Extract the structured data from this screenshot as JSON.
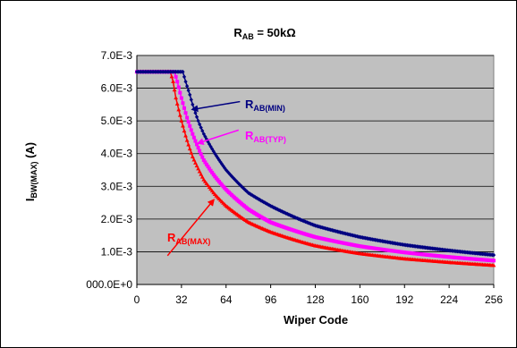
{
  "chart_data": {
    "type": "line",
    "title": {
      "main": "R",
      "sub": "AB",
      "rest": " = 50kΩ"
    },
    "xlabel": "Wiper Code",
    "ylabel": {
      "main": "I",
      "sub": "BW(MAX)",
      "rest": " (A)"
    },
    "xlim": [
      0,
      256
    ],
    "ylim": [
      0,
      0.007
    ],
    "xticks": [
      0,
      32,
      64,
      96,
      128,
      160,
      192,
      224,
      256
    ],
    "xtick_labels": [
      "0",
      "32",
      "64",
      "96",
      "128",
      "160",
      "192",
      "224",
      "256"
    ],
    "yticks": [
      0,
      0.001,
      0.002,
      0.003,
      0.004,
      0.005,
      0.006,
      0.007
    ],
    "ytick_labels": [
      "000.0E+0",
      "1.0E-3",
      "2.0E-3",
      "3.0E-3",
      "4.0E-3",
      "5.0E-3",
      "6.0E-3",
      "7.0E-3"
    ],
    "grid": true,
    "plot_background": "#c0c0c0",
    "series": [
      {
        "id": "max",
        "color": "#ff0000",
        "marker": "triangle",
        "x": [
          0,
          24,
          26,
          28,
          32,
          36,
          40,
          48,
          56,
          64,
          80,
          96,
          128,
          160,
          192,
          224,
          256
        ],
        "y": [
          0.0065,
          0.0065,
          0.0062,
          0.0057,
          0.005,
          0.0044,
          0.0039,
          0.0032,
          0.00275,
          0.0024,
          0.0019,
          0.0016,
          0.00118,
          0.00094,
          0.00078,
          0.00067,
          0.00058
        ]
      },
      {
        "id": "typ",
        "color": "#ff00ff",
        "marker": "square",
        "x": [
          0,
          27,
          29,
          32,
          36,
          40,
          48,
          56,
          64,
          80,
          96,
          128,
          160,
          192,
          224,
          256
        ],
        "y": [
          0.0065,
          0.0065,
          0.0062,
          0.0057,
          0.0051,
          0.0046,
          0.0038,
          0.0033,
          0.0029,
          0.0023,
          0.0019,
          0.00145,
          0.00117,
          0.00098,
          0.00084,
          0.00073
        ]
      },
      {
        "id": "min",
        "color": "#000080",
        "marker": "diamond",
        "x": [
          0,
          33,
          35,
          38,
          40,
          44,
          48,
          56,
          64,
          80,
          96,
          128,
          160,
          192,
          224,
          256
        ],
        "y": [
          0.0065,
          0.0065,
          0.0062,
          0.0058,
          0.0055,
          0.005,
          0.0046,
          0.004,
          0.0035,
          0.0028,
          0.0024,
          0.0018,
          0.00145,
          0.00121,
          0.00104,
          0.0009
        ]
      }
    ],
    "annotations": [
      {
        "id": "min",
        "main": "R",
        "sub": "AB(MIN)",
        "color": "#000080",
        "arrow_from": [
          74,
          0.00559
        ],
        "arrow_to": [
          40,
          0.00535
        ]
      },
      {
        "id": "typ",
        "main": "R",
        "sub": "AB(TYP)",
        "color": "#ff00ff",
        "arrow_from": [
          73,
          0.00472
        ],
        "arrow_to": [
          44,
          0.00432
        ]
      },
      {
        "id": "max",
        "main": "R",
        "sub": "AB(MAX)",
        "color": "#ff0000",
        "arrow_from": [
          22,
          0.00088
        ],
        "arrow_to": [
          55,
          0.00258
        ]
      }
    ]
  }
}
